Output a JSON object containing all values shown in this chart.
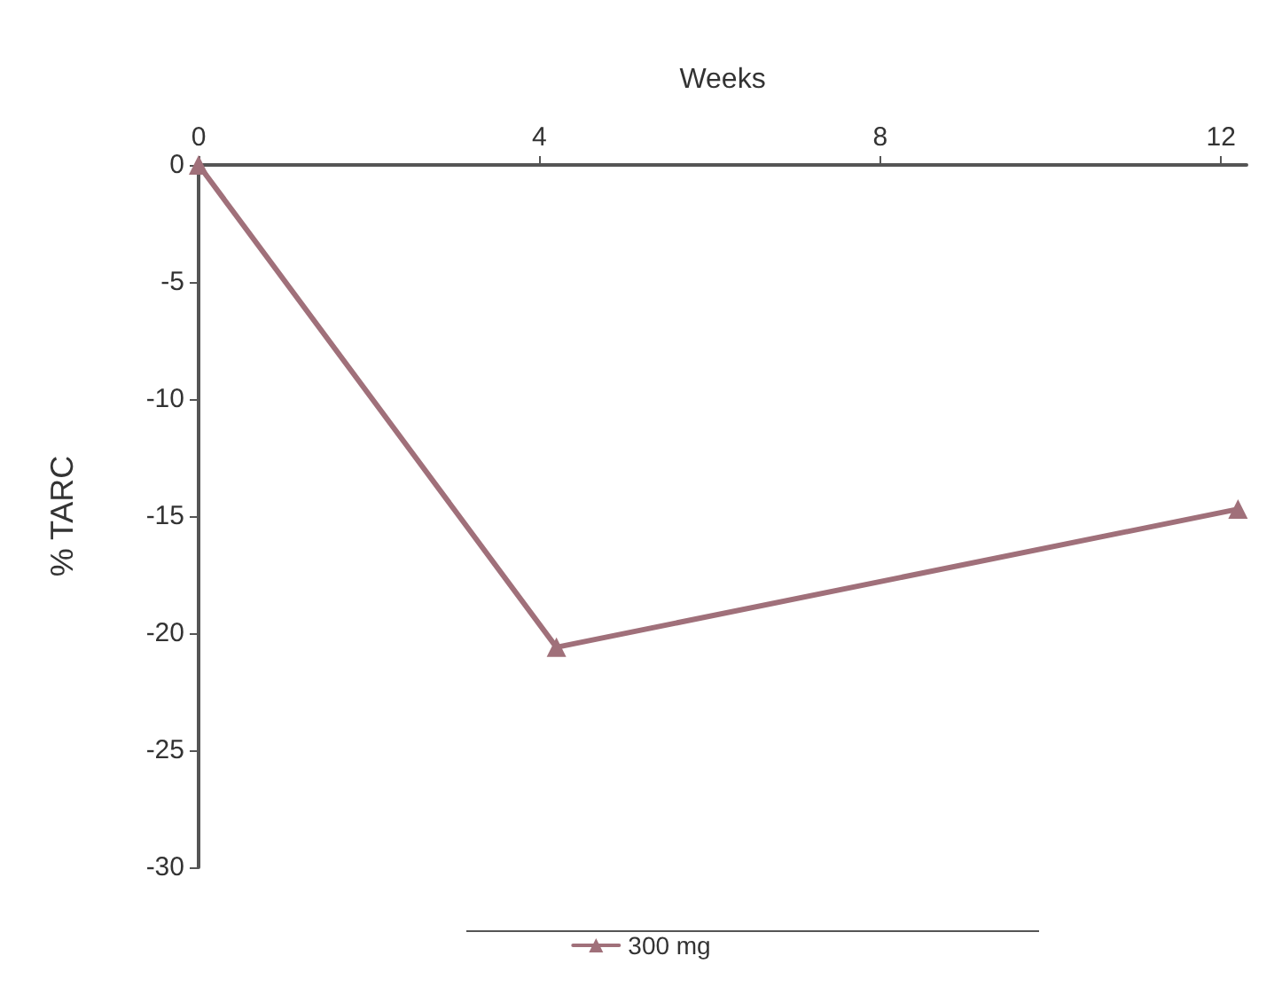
{
  "chart_data": {
    "type": "line",
    "xlabel": "Weeks",
    "ylabel": "% TARC",
    "x": [
      0,
      4.2,
      12.2
    ],
    "series": [
      {
        "name": "300 mg",
        "color": "#a0707a",
        "values": [
          0,
          -20.6,
          -14.7
        ]
      }
    ],
    "xlim": [
      0,
      12.3
    ],
    "xticks": [
      0,
      4,
      8,
      12
    ],
    "ylim": [
      -30,
      0
    ],
    "yticks": [
      0,
      -5,
      -10,
      -15,
      -20,
      -25,
      -30
    ],
    "grid": false,
    "legend": "bottom",
    "marker": "triangle",
    "line_style": "solid"
  }
}
